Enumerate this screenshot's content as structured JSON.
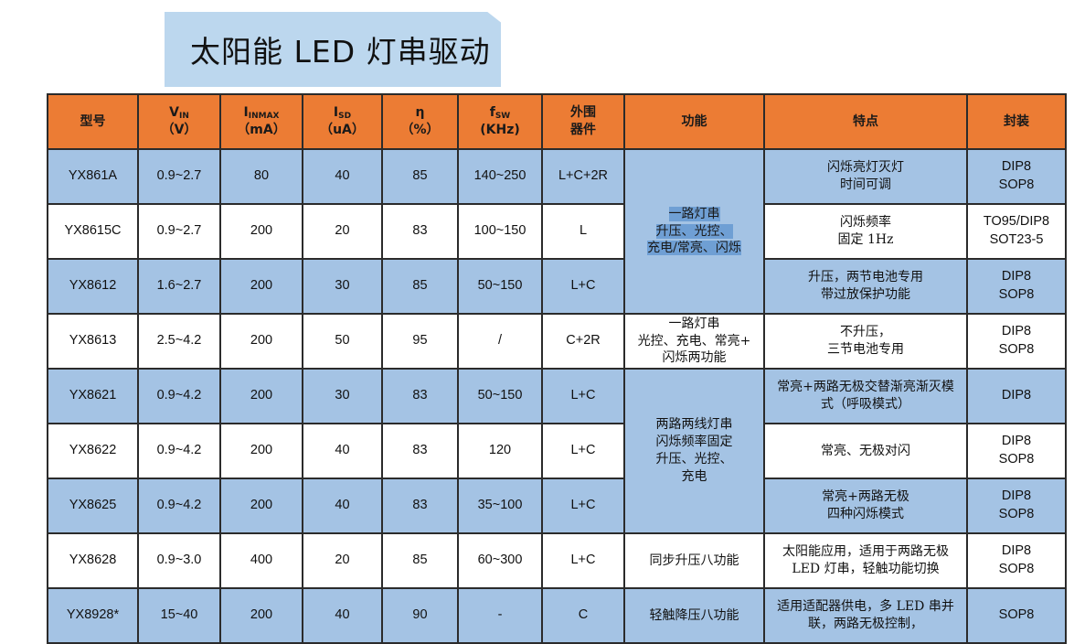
{
  "title": "太阳能 LED 灯串驱动",
  "headers": {
    "model": "型号",
    "vin": "V",
    "vin_sub": "IN",
    "vin_unit": "（V）",
    "iin": "I",
    "iin_sub": "INMAX",
    "iin_unit": "（mA）",
    "isd": "I",
    "isd_sub": "SD",
    "isd_unit": "（uA）",
    "eta": "η",
    "eta_unit": "（%）",
    "fsw": "f",
    "fsw_sub": "SW",
    "fsw_unit": "(KHz)",
    "ext": "外围",
    "ext2": "器件",
    "function": "功能",
    "features": "特点",
    "package": "封装"
  },
  "rows": [
    {
      "model": "YX861A",
      "vin": "0.9~2.7",
      "iin": "80",
      "isd": "40",
      "eta": "85",
      "fsw": "140~250",
      "ext": "L+C+2R",
      "feat1": "闪烁亮灯灭灯",
      "feat2": "时间可调",
      "pkg1": "DIP8",
      "pkg2": "SOP8"
    },
    {
      "model": "YX8615C",
      "vin": "0.9~2.7",
      "iin": "200",
      "isd": "20",
      "eta": "83",
      "fsw": "100~150",
      "ext": "L",
      "feat1": "闪烁频率",
      "feat2": "固定 1Hz",
      "pkg1": "TO95/DIP8",
      "pkg2": "SOT23-5"
    },
    {
      "model": "YX8612",
      "vin": "1.6~2.7",
      "iin": "200",
      "isd": "30",
      "eta": "85",
      "fsw": "50~150",
      "ext": "L+C",
      "feat1": "升压，两节电池专用",
      "feat2": "带过放保护功能",
      "pkg1": "DIP8",
      "pkg2": "SOP8"
    },
    {
      "model": "YX8613",
      "vin": "2.5~4.2",
      "iin": "200",
      "isd": "50",
      "eta": "95",
      "fsw": "/",
      "ext": "C+2R",
      "feat1": "不升压，",
      "feat2": "三节电池专用",
      "pkg1": "DIP8",
      "pkg2": "SOP8"
    },
    {
      "model": "YX8621",
      "vin": "0.9~4.2",
      "iin": "200",
      "isd": "30",
      "eta": "83",
      "fsw": "50~150",
      "ext": "L+C",
      "feat1": "常亮+两路无极交替渐亮渐灭模",
      "feat2": "式（呼吸模式）",
      "pkg1": "DIP8",
      "pkg2": ""
    },
    {
      "model": "YX8622",
      "vin": "0.9~4.2",
      "iin": "200",
      "isd": "40",
      "eta": "83",
      "fsw": "120",
      "ext": "L+C",
      "feat1": "常亮、无极对闪",
      "feat2": "",
      "pkg1": "DIP8",
      "pkg2": "SOP8"
    },
    {
      "model": "YX8625",
      "vin": "0.9~4.2",
      "iin": "200",
      "isd": "40",
      "eta": "83",
      "fsw": "35~100",
      "ext": "L+C",
      "feat1": "常亮+两路无极",
      "feat2": "四种闪烁模式",
      "pkg1": "DIP8",
      "pkg2": "SOP8"
    },
    {
      "model": "YX8628",
      "vin": "0.9~3.0",
      "iin": "400",
      "isd": "20",
      "eta": "85",
      "fsw": "60~300",
      "ext": "L+C",
      "feat1": "太阳能应用，适用于两路无极",
      "feat2": "LED 灯串，轻触功能切换",
      "pkg1": "DIP8",
      "pkg2": "SOP8"
    },
    {
      "model": "YX8928*",
      "vin": "15~40",
      "iin": "200",
      "isd": "40",
      "eta": "90",
      "fsw": "-",
      "ext": "C",
      "feat1": "适用适配器供电，多 LED 串并",
      "feat2": "联，两路无极控制，",
      "pkg1": "SOP8",
      "pkg2": ""
    }
  ],
  "functions": {
    "g1": [
      "一路灯串",
      "升压、光控、",
      "充电/常亮、闪烁"
    ],
    "g2": [
      "一路灯串",
      "光控、充电、常亮+",
      "闪烁两功能"
    ],
    "g3": [
      "两路两线灯串",
      "闪烁频率固定",
      "升压、光控、",
      "充电"
    ],
    "g4": "同步升压八功能",
    "g5": "轻触降压八功能"
  }
}
